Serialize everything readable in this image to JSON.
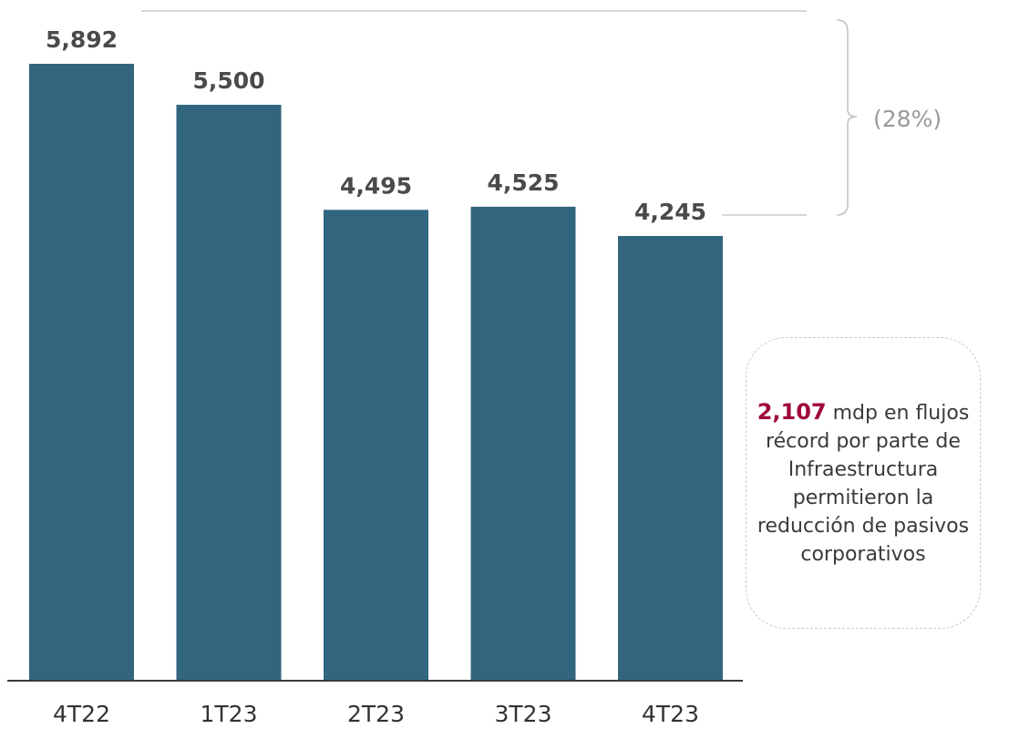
{
  "chart_data": {
    "type": "bar",
    "categories": [
      "4T22",
      "1T23",
      "2T23",
      "3T23",
      "4T23"
    ],
    "values": [
      5892,
      5500,
      4495,
      4525,
      4245
    ],
    "value_labels": [
      "5,892",
      "5,500",
      "4,495",
      "4,525",
      "4,245"
    ],
    "bar_color": "#32667f",
    "change_label": "(28%)",
    "grid": false
  },
  "callout": {
    "highlight": "2,107",
    "highlight_color": "#a0063c",
    "text": "mdp en flujos récord por parte de Infraestructura permitieron la reducción de pasivos corporativos"
  }
}
